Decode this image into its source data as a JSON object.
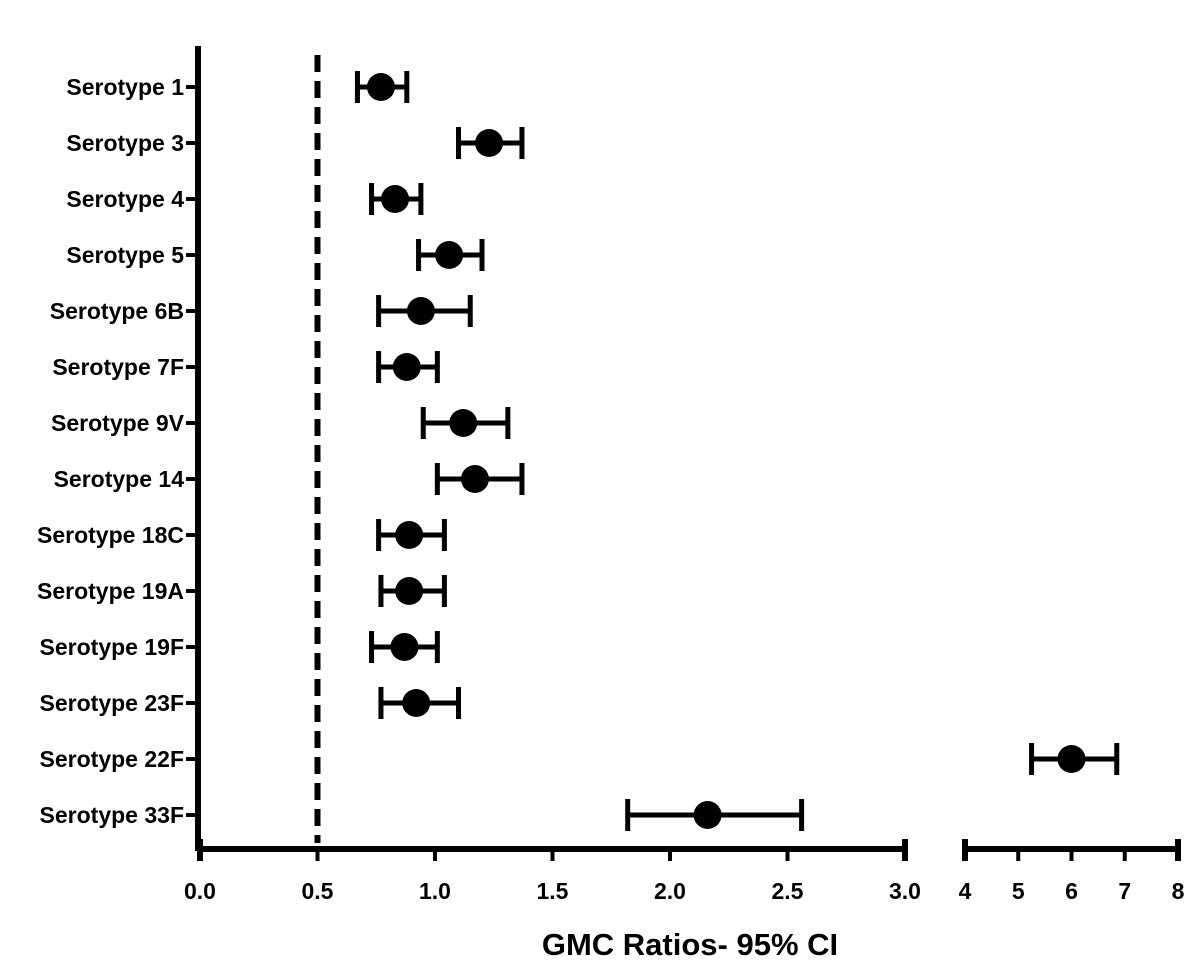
{
  "chart_data": {
    "type": "scatter",
    "title": "",
    "xlabel": "GMC Ratios- 95% CI",
    "ylabel": "",
    "reference_line": {
      "x": 0.5,
      "style": "dashed"
    },
    "axis_segments": [
      {
        "range": [
          0.0,
          3.0
        ],
        "ticks": [
          "0.0",
          "0.5",
          "1.0",
          "1.5",
          "2.0",
          "2.5",
          "3.0"
        ],
        "tick_values": [
          0.0,
          0.5,
          1.0,
          1.5,
          2.0,
          2.5,
          3.0
        ]
      },
      {
        "range": [
          4,
          8
        ],
        "ticks": [
          "4",
          "5",
          "6",
          "7",
          "8"
        ],
        "tick_values": [
          4,
          5,
          6,
          7,
          8
        ]
      }
    ],
    "categories": [
      "Serotype 1",
      "Serotype 3",
      "Serotype 4",
      "Serotype 5",
      "Serotype 6B",
      "Serotype 7F",
      "Serotype 9V",
      "Serotype 14",
      "Serotype 18C",
      "Serotype 19A",
      "Serotype 19F",
      "Serotype 23F",
      "Serotype 22F",
      "Serotype 33F"
    ],
    "series": [
      {
        "estimate": [
          0.77,
          1.23,
          0.83,
          1.06,
          0.94,
          0.88,
          1.12,
          1.17,
          0.89,
          0.89,
          0.87,
          0.92,
          6.0,
          2.16
        ],
        "ci_lower": [
          0.67,
          1.1,
          0.73,
          0.93,
          0.76,
          0.76,
          0.95,
          1.01,
          0.76,
          0.77,
          0.73,
          0.77,
          5.25,
          1.82
        ],
        "ci_upper": [
          0.88,
          1.37,
          0.94,
          1.2,
          1.15,
          1.01,
          1.31,
          1.37,
          1.04,
          1.04,
          1.01,
          1.1,
          6.85,
          2.56
        ]
      }
    ],
    "colors": {
      "markers": "#000000",
      "axes": "#000000"
    },
    "grid": false,
    "legend": "none"
  }
}
